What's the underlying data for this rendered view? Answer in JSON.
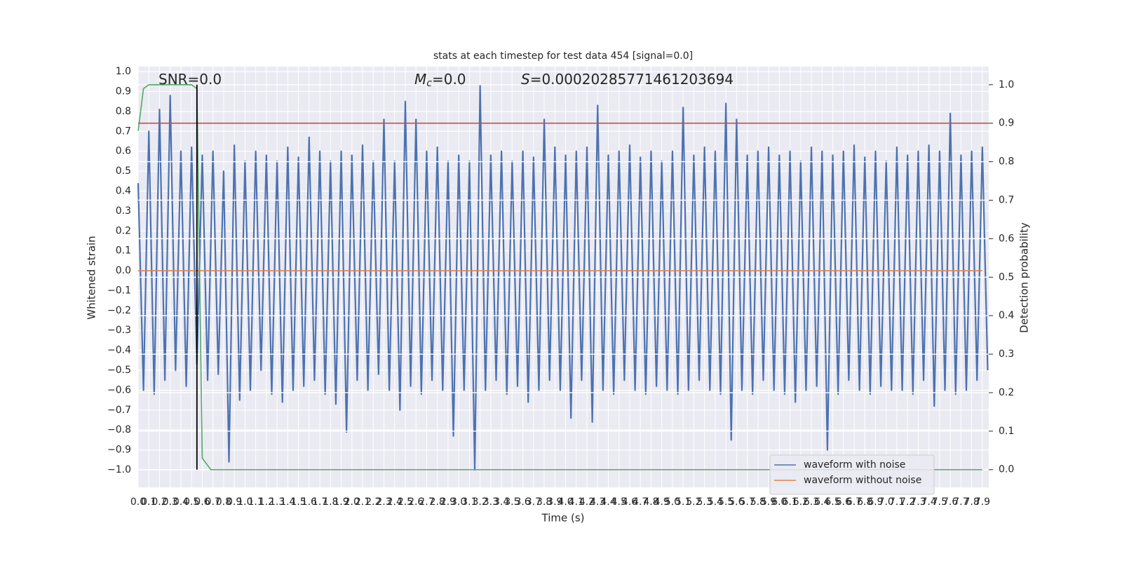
{
  "chart_data": {
    "type": "line",
    "title": "stats at each timestep for test data 454 [signal=0.0]",
    "xlabel": "Time (s)",
    "ylabel": "Whitened strain",
    "y2label": "Detection probability",
    "annotations": [
      {
        "text": "SNR=0.0"
      },
      {
        "symbol": "M",
        "sub": "c",
        "text": "=0.0"
      },
      {
        "symbol": "S",
        "text": "=0.00020285771461203694"
      }
    ],
    "xlim": [
      0,
      7.96
    ],
    "ylim": [
      -1.088,
      1.025
    ],
    "y2lim": [
      -0.046,
      1.047
    ],
    "grid": true,
    "legend": "lower right",
    "xticks": [
      {
        "value": 0,
        "label": "0.0"
      },
      0.1,
      0.2,
      0.3,
      0.4,
      0.5,
      0.6,
      0.7,
      0.8,
      0.9,
      {
        "value": 1,
        "label": "1.0"
      },
      1.1,
      1.2,
      1.3,
      1.4,
      1.5,
      1.6,
      1.7,
      1.8,
      1.9,
      {
        "value": 2,
        "label": "2.0"
      },
      2.1,
      2.2,
      2.3,
      2.4,
      2.5,
      2.6,
      2.7,
      2.8,
      2.9,
      {
        "value": 3,
        "label": "3.0"
      },
      3.1,
      3.2,
      3.3,
      3.4,
      3.5,
      3.6,
      3.7,
      3.8,
      3.9,
      {
        "value": 4,
        "label": "4.0"
      },
      4.1,
      4.2,
      4.3,
      4.4,
      4.5,
      4.6,
      4.7,
      4.8,
      4.9,
      {
        "value": 5,
        "label": "5.0"
      },
      5.1,
      5.2,
      5.3,
      5.4,
      5.5,
      5.6,
      5.7,
      5.8,
      5.9,
      {
        "value": 6,
        "label": "6.0"
      },
      6.1,
      6.2,
      6.3,
      6.4,
      6.5,
      6.6,
      6.7,
      6.8,
      6.9,
      {
        "value": 7,
        "label": "7.0"
      },
      7.1,
      7.2,
      7.3,
      7.4,
      7.5,
      7.6,
      7.7,
      7.8,
      7.9
    ],
    "yticks": [
      {
        "value": 1,
        "label": "1.0"
      },
      0.9,
      0.8,
      0.7,
      0.6,
      0.5,
      0.4,
      0.3,
      0.2,
      0.1,
      {
        "value": 0,
        "label": "0.0"
      },
      {
        "value": -0.1,
        "label": "−0.1"
      },
      {
        "value": -0.2,
        "label": "−0.2"
      },
      {
        "value": -0.3,
        "label": "−0.3"
      },
      {
        "value": -0.4,
        "label": "−0.4"
      },
      {
        "value": -0.5,
        "label": "−0.5"
      },
      {
        "value": -0.6,
        "label": "−0.6"
      },
      {
        "value": -0.7,
        "label": "−0.7"
      },
      {
        "value": -0.8,
        "label": "−0.8"
      },
      {
        "value": -0.9,
        "label": "−0.9"
      },
      {
        "value": -1,
        "label": "−1.0"
      }
    ],
    "y2ticks": [
      {
        "value": 0,
        "label": "0.0"
      },
      0.1,
      0.2,
      0.3,
      0.4,
      0.5,
      0.6,
      0.7,
      0.8,
      0.9,
      {
        "value": 1,
        "label": "1.0"
      }
    ],
    "series": [
      {
        "name": "waveform with noise",
        "color": "#4c72b0",
        "x": [
          0,
          0.05,
          0.1,
          0.15,
          0.2,
          0.25,
          0.3,
          0.35,
          0.4,
          0.45,
          0.5,
          0.55,
          0.6,
          0.65,
          0.7,
          0.75,
          0.8,
          0.85,
          0.9,
          0.95,
          1,
          1.05,
          1.1,
          1.15,
          1.2,
          1.25,
          1.3,
          1.35,
          1.4,
          1.45,
          1.5,
          1.55,
          1.6,
          1.65,
          1.7,
          1.75,
          1.8,
          1.85,
          1.9,
          1.95,
          2,
          2.05,
          2.1,
          2.15,
          2.2,
          2.25,
          2.3,
          2.35,
          2.4,
          2.45,
          2.5,
          2.55,
          2.6,
          2.65,
          2.7,
          2.75,
          2.8,
          2.85,
          2.9,
          2.95,
          3,
          3.05,
          3.1,
          3.15,
          3.2,
          3.25,
          3.3,
          3.35,
          3.4,
          3.45,
          3.5,
          3.55,
          3.6,
          3.65,
          3.7,
          3.75,
          3.8,
          3.85,
          3.9,
          3.95,
          4,
          4.05,
          4.1,
          4.15,
          4.2,
          4.25,
          4.3,
          4.35,
          4.4,
          4.45,
          4.5,
          4.55,
          4.6,
          4.65,
          4.7,
          4.75,
          4.8,
          4.85,
          4.9,
          4.95,
          5,
          5.05,
          5.1,
          5.15,
          5.2,
          5.25,
          5.3,
          5.35,
          5.4,
          5.45,
          5.5,
          5.55,
          5.6,
          5.65,
          5.7,
          5.75,
          5.8,
          5.85,
          5.9,
          5.95,
          6,
          6.05,
          6.1,
          6.15,
          6.2,
          6.25,
          6.3,
          6.35,
          6.4,
          6.45,
          6.5,
          6.55,
          6.6,
          6.65,
          6.7,
          6.75,
          6.8,
          6.85,
          6.9,
          6.95,
          7,
          7.05,
          7.1,
          7.15,
          7.2,
          7.25,
          7.3,
          7.35,
          7.4,
          7.45,
          7.5,
          7.55,
          7.6,
          7.65,
          7.7,
          7.75,
          7.8,
          7.85,
          7.9,
          7.95
        ],
        "values": [
          0.44,
          -0.6,
          0.7,
          -0.62,
          0.81,
          -0.55,
          0.88,
          -0.5,
          0.6,
          -0.58,
          0.62,
          -0.47,
          0.58,
          -0.55,
          0.6,
          -0.52,
          0.5,
          -0.96,
          0.63,
          -0.65,
          0.55,
          -0.6,
          0.6,
          -0.5,
          0.58,
          -0.62,
          0.55,
          -0.66,
          0.62,
          -0.6,
          0.57,
          -0.58,
          0.67,
          -0.55,
          0.6,
          -0.62,
          0.55,
          -0.67,
          0.6,
          -0.81,
          0.58,
          -0.55,
          0.63,
          -0.6,
          0.55,
          -0.52,
          0.76,
          -0.6,
          0.55,
          -0.7,
          0.85,
          -0.58,
          0.76,
          -0.62,
          0.6,
          -0.55,
          0.62,
          -0.6,
          0.55,
          -0.83,
          0.58,
          -0.6,
          0.55,
          -1.0,
          0.93,
          -0.6,
          0.58,
          -0.55,
          0.6,
          -0.62,
          0.55,
          -0.58,
          0.6,
          -0.66,
          0.57,
          -0.6,
          0.76,
          -0.55,
          0.62,
          -0.6,
          0.58,
          -0.74,
          0.6,
          -0.55,
          0.62,
          -0.76,
          0.83,
          -0.6,
          0.58,
          -0.62,
          0.6,
          -0.55,
          0.63,
          -0.6,
          0.57,
          -0.62,
          0.6,
          -0.58,
          0.55,
          -0.6,
          0.6,
          -0.62,
          0.82,
          -0.6,
          0.58,
          -0.55,
          0.62,
          -0.6,
          0.6,
          -0.62,
          0.84,
          -0.85,
          0.76,
          -0.6,
          0.58,
          -0.62,
          0.6,
          -0.55,
          0.62,
          -0.6,
          0.58,
          -0.62,
          0.6,
          -0.66,
          0.55,
          -0.6,
          0.62,
          -0.58,
          0.6,
          -0.9,
          0.58,
          -0.62,
          0.6,
          -0.55,
          0.63,
          -0.6,
          0.57,
          -0.62,
          0.6,
          -0.58,
          0.55,
          -0.6,
          0.62,
          -0.6,
          0.58,
          -0.62,
          0.6,
          -0.55,
          0.63,
          -0.68,
          0.6,
          -0.6,
          0.79,
          -0.62,
          0.58,
          -0.6,
          0.6,
          -0.55,
          0.62,
          -0.5
        ]
      },
      {
        "name": "waveform without noise",
        "color": "#dd8452",
        "x": [
          0,
          7.9
        ],
        "values": [
          0,
          0
        ]
      },
      {
        "color": "#55a868",
        "axis": "y2",
        "x": [
          0,
          0.05,
          0.1,
          0.15,
          0.5,
          0.55,
          0.6,
          0.68,
          7.9
        ],
        "values": [
          0.88,
          0.99,
          1.0,
          1.0,
          1.0,
          0.99,
          0.03,
          0.0,
          0.0
        ]
      }
    ],
    "threshold": {
      "value": 0.9,
      "axis": "y2",
      "color": "#c44e52"
    },
    "vline": {
      "x": 0.55,
      "ymin": 0,
      "ymax": 1,
      "axis": "y2",
      "color": "#000000"
    }
  }
}
